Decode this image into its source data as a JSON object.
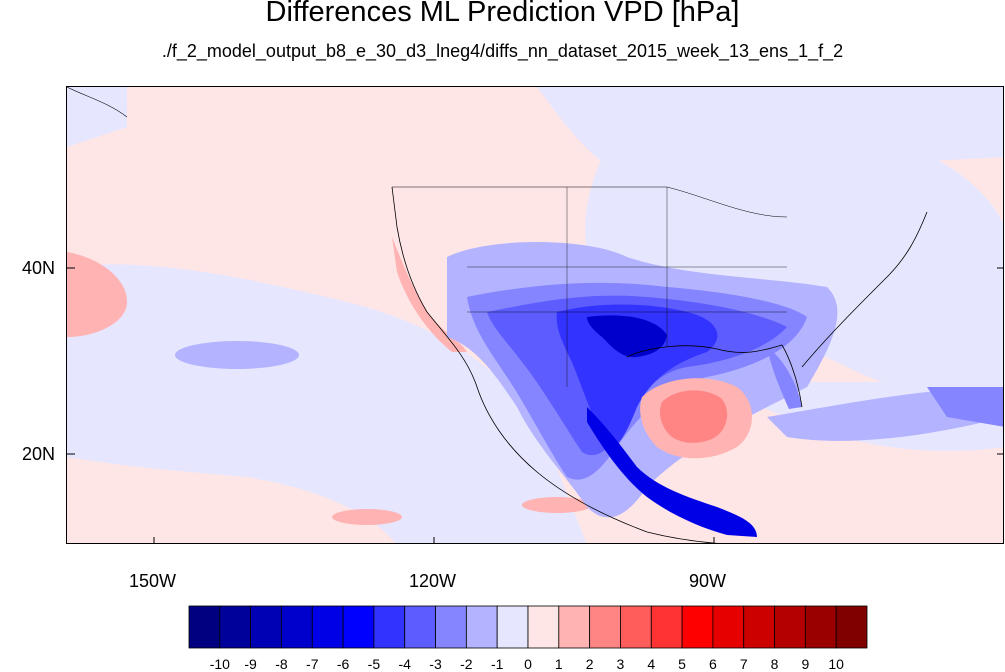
{
  "title": "Differences ML Prediction VPD [hPa]",
  "subtitle": "./f_2_model_output_b8_e_30_d3_lneg4/diffs_nn_dataset_2015_week_13_ens_1_f_2",
  "axes": {
    "lat_labels": [
      "40N",
      "20N"
    ],
    "lon_labels": [
      "150W",
      "120W",
      "90W"
    ]
  },
  "colorbar": {
    "labels": [
      "-10",
      "-9",
      "-8",
      "-7",
      "-6",
      "-5",
      "-4",
      "-3",
      "-2",
      "-1",
      "0",
      "1",
      "2",
      "3",
      "4",
      "5",
      "6",
      "7",
      "8",
      "9",
      "10"
    ],
    "colors": [
      "#000080",
      "#00009a",
      "#0000b4",
      "#0000cd",
      "#0000e6",
      "#0000ff",
      "#3333ff",
      "#5c5cff",
      "#8585ff",
      "#b3b3ff",
      "#e6e6ff",
      "#ffe6e6",
      "#ffb3b3",
      "#ff8585",
      "#ff5c5c",
      "#ff3333",
      "#ff0000",
      "#e60000",
      "#cd0000",
      "#b40000",
      "#9a0000",
      "#800000"
    ]
  }
}
